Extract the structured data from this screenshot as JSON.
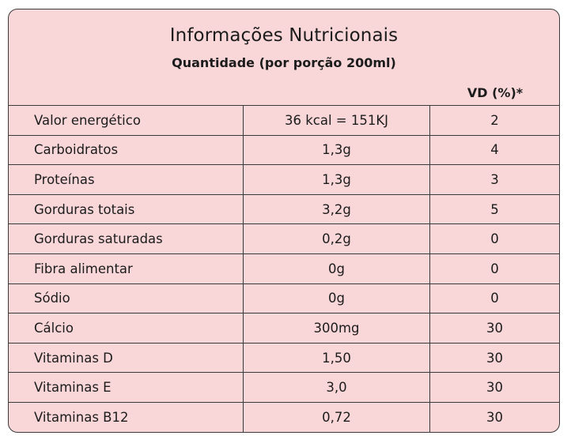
{
  "title": "Informações Nutricionais",
  "subtitle": "Quantidade (por porção 200ml)",
  "vd_header": "VD (%)*",
  "rows": [
    {
      "name": "Valor energético",
      "qty": "36 kcal = 151KJ",
      "vd": "2"
    },
    {
      "name": "Carboidratos",
      "qty": "1,3g",
      "vd": "4"
    },
    {
      "name": "Proteínas",
      "qty": "1,3g",
      "vd": "3"
    },
    {
      "name": "Gorduras totais",
      "qty": "3,2g",
      "vd": "5"
    },
    {
      "name": "Gorduras saturadas",
      "qty": "0,2g",
      "vd": "0"
    },
    {
      "name": "Fibra alimentar",
      "qty": "0g",
      "vd": "0"
    },
    {
      "name": "Sódio",
      "qty": "0g",
      "vd": "0"
    },
    {
      "name": "Cálcio",
      "qty": "300mg",
      "vd": "30"
    },
    {
      "name": "Vitaminas D",
      "qty": "1,50",
      "vd": "30"
    },
    {
      "name": "Vitaminas E",
      "qty": "3,0",
      "vd": "30"
    },
    {
      "name": "Vitaminas B12",
      "qty": "0,72",
      "vd": "30"
    }
  ]
}
